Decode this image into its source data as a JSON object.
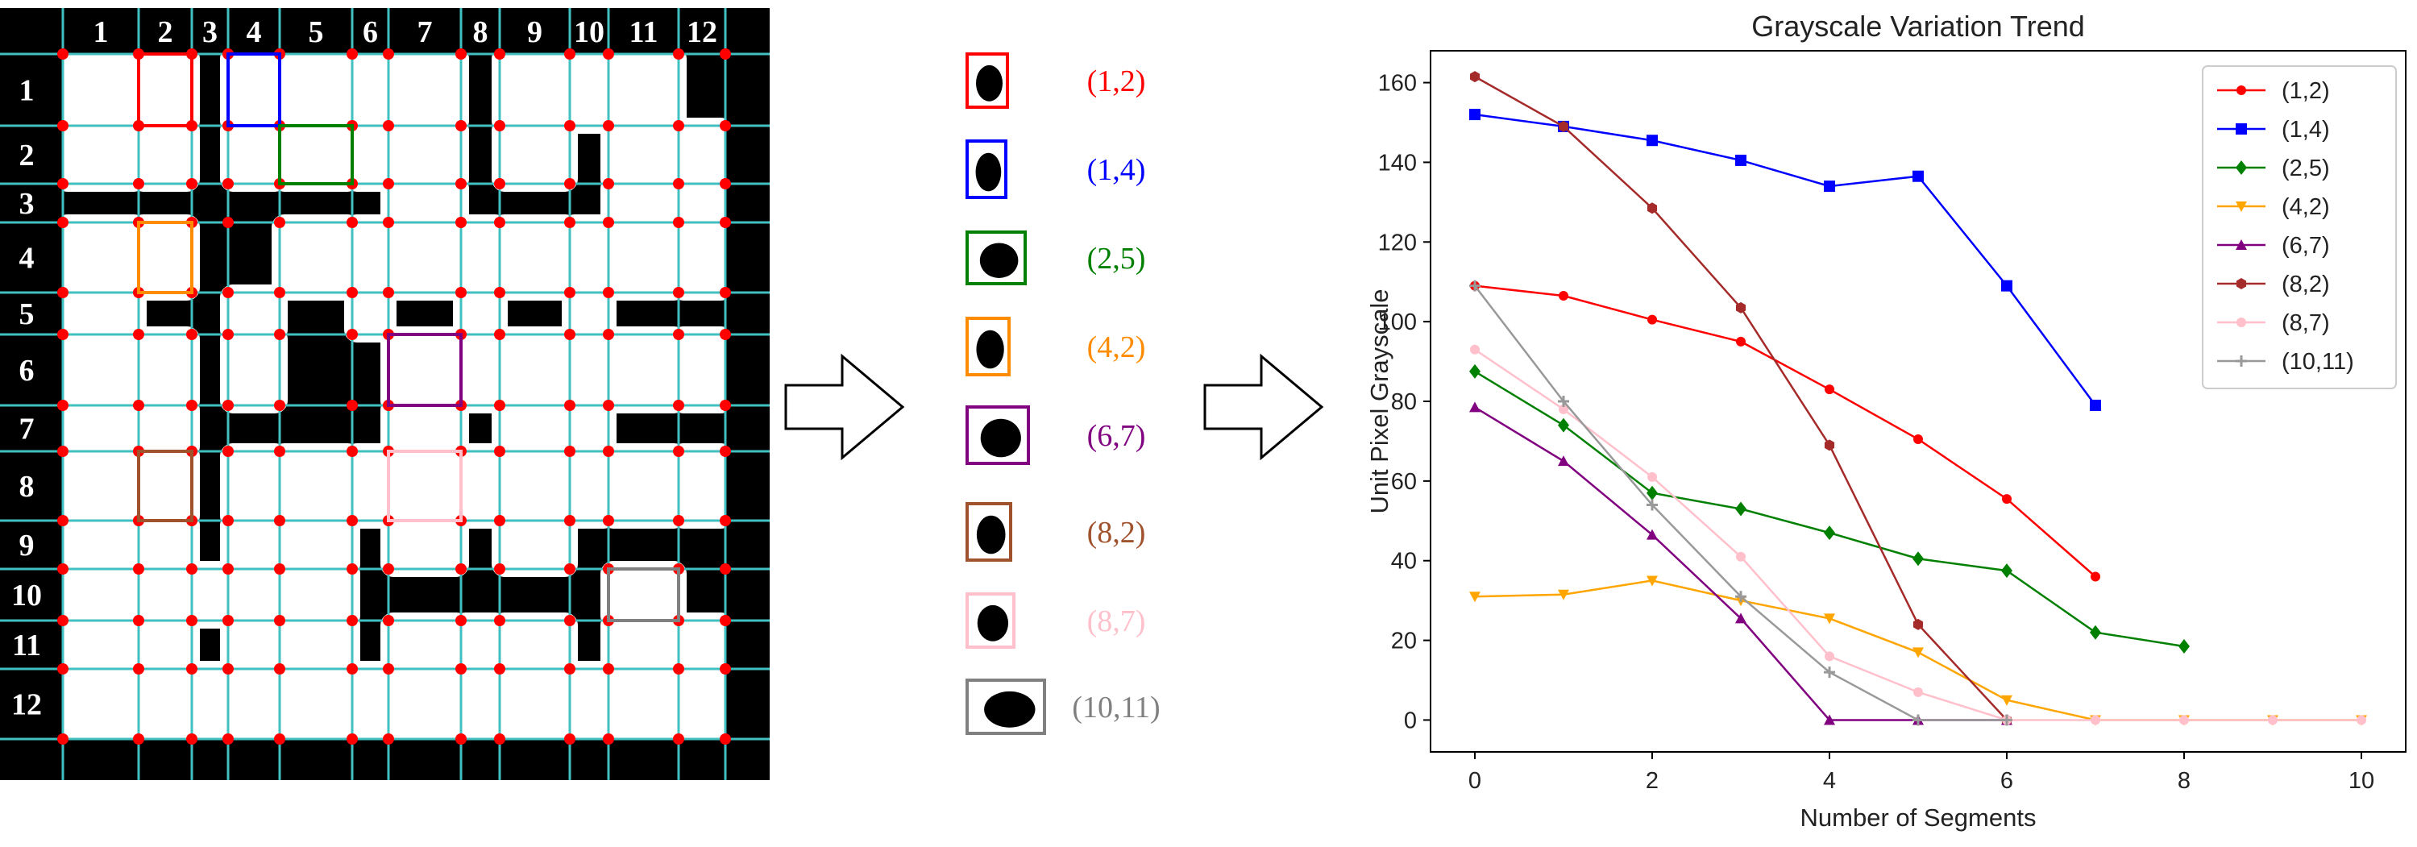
{
  "grid_figure": {
    "col_labels": [
      "1",
      "2",
      "3",
      "4",
      "5",
      "6",
      "7",
      "8",
      "9",
      "10",
      "11",
      "12"
    ],
    "row_labels": [
      "1",
      "2",
      "3",
      "4",
      "5",
      "6",
      "7",
      "8",
      "9",
      "10",
      "11",
      "12"
    ]
  },
  "cells": [
    {
      "label": "(1,2)",
      "color": "#ff0000",
      "row": 1,
      "col": 2
    },
    {
      "label": "(1,4)",
      "color": "#0000ff",
      "row": 1,
      "col": 4
    },
    {
      "label": "(2,5)",
      "color": "#008000",
      "row": 2,
      "col": 5
    },
    {
      "label": "(4,2)",
      "color": "#ff8c00",
      "row": 4,
      "col": 2
    },
    {
      "label": "(6,7)",
      "color": "#800080",
      "row": 6,
      "col": 7
    },
    {
      "label": "(8,2)",
      "color": "#a0522d",
      "row": 8,
      "col": 2
    },
    {
      "label": "(8,7)",
      "color": "#ffc0cb",
      "row": 8,
      "col": 7
    },
    {
      "label": "(10,11)",
      "color": "#808080",
      "row": 10,
      "col": 11
    }
  ],
  "chart_data": {
    "type": "line",
    "title": "Grayscale Variation Trend",
    "xlabel": "Number of Segments",
    "ylabel": "Unit Pixel Grayscale",
    "xlim": [
      -0.5,
      10.5
    ],
    "ylim": [
      -8,
      168
    ],
    "xticks": [
      0,
      2,
      4,
      6,
      8,
      10
    ],
    "yticks": [
      0,
      20,
      40,
      60,
      80,
      100,
      120,
      140,
      160
    ],
    "legend_position": "top-right",
    "series": [
      {
        "name": "(1,2)",
        "color": "#ff0000",
        "marker": "circle",
        "x": [
          0,
          1,
          2,
          3,
          4,
          5,
          6,
          7
        ],
        "y": [
          109,
          106.5,
          100.5,
          95,
          83,
          70.5,
          55.5,
          36
        ]
      },
      {
        "name": "(1,4)",
        "color": "#0000ff",
        "marker": "square",
        "x": [
          0,
          1,
          2,
          3,
          4,
          5,
          6,
          7
        ],
        "y": [
          152,
          149,
          145.5,
          140.5,
          134,
          136.5,
          109,
          79
        ]
      },
      {
        "name": "(2,5)",
        "color": "#008000",
        "marker": "diamond",
        "x": [
          0,
          1,
          2,
          3,
          4,
          5,
          6,
          7,
          8
        ],
        "y": [
          87.5,
          74,
          57,
          53,
          47,
          40.5,
          37.5,
          22,
          18.5
        ]
      },
      {
        "name": "(4,2)",
        "color": "#ffa500",
        "marker": "triangle-down",
        "x": [
          0,
          1,
          2,
          3,
          4,
          5,
          6,
          7,
          8,
          9,
          10
        ],
        "y": [
          31,
          31.5,
          35,
          30,
          25.5,
          17,
          5,
          0,
          0,
          0,
          0
        ]
      },
      {
        "name": "(6,7)",
        "color": "#800080",
        "marker": "triangle-up",
        "x": [
          0,
          1,
          2,
          3,
          4,
          5,
          6
        ],
        "y": [
          78.5,
          65,
          46.5,
          25.5,
          0,
          0,
          0
        ]
      },
      {
        "name": "(8,2)",
        "color": "#a52a2a",
        "marker": "hexagon",
        "x": [
          0,
          1,
          2,
          3,
          4,
          5,
          6
        ],
        "y": [
          161.5,
          149,
          128.5,
          103.5,
          69,
          24,
          0
        ]
      },
      {
        "name": "(8,7)",
        "color": "#ffc0cb",
        "marker": "circle",
        "x": [
          0,
          1,
          2,
          3,
          4,
          5,
          6,
          7,
          8,
          9,
          10
        ],
        "y": [
          93,
          78,
          61,
          41,
          16,
          7,
          0,
          0,
          0,
          0,
          0
        ]
      },
      {
        "name": "(10,11)",
        "color": "#999999",
        "marker": "plus",
        "x": [
          0,
          1,
          2,
          3,
          4,
          5,
          6
        ],
        "y": [
          109,
          80,
          54,
          31,
          12,
          0,
          0
        ]
      }
    ]
  }
}
